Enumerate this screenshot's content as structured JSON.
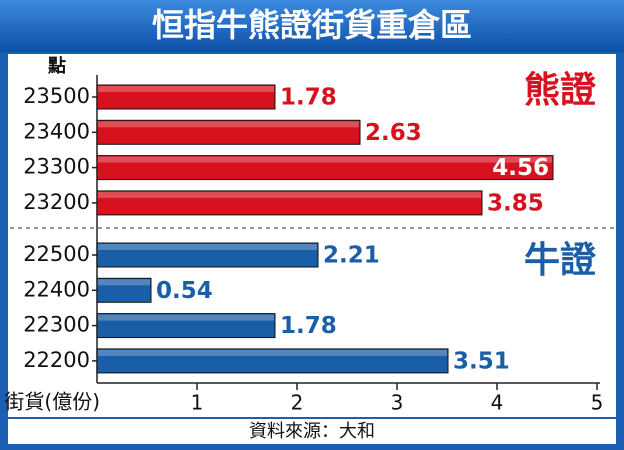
{
  "chart_data": {
    "type": "bar",
    "orientation": "horizontal",
    "title": "恒指牛熊證街貨重倉區",
    "y_label": "點",
    "x_label": "街貨(億份)",
    "source": "資料來源：大和",
    "groups": [
      {
        "name": "熊證",
        "color": "#d7121e",
        "categories": [
          "23500",
          "23400",
          "23300",
          "23200"
        ],
        "values": [
          1.78,
          2.63,
          4.56,
          3.85
        ]
      },
      {
        "name": "牛證",
        "color": "#1a5ea8",
        "categories": [
          "22500",
          "22400",
          "22300",
          "22200"
        ],
        "values": [
          2.21,
          0.54,
          1.78,
          3.51
        ]
      }
    ],
    "xlim": [
      0,
      5
    ],
    "xticks": [
      1,
      2,
      3,
      4,
      5
    ]
  }
}
